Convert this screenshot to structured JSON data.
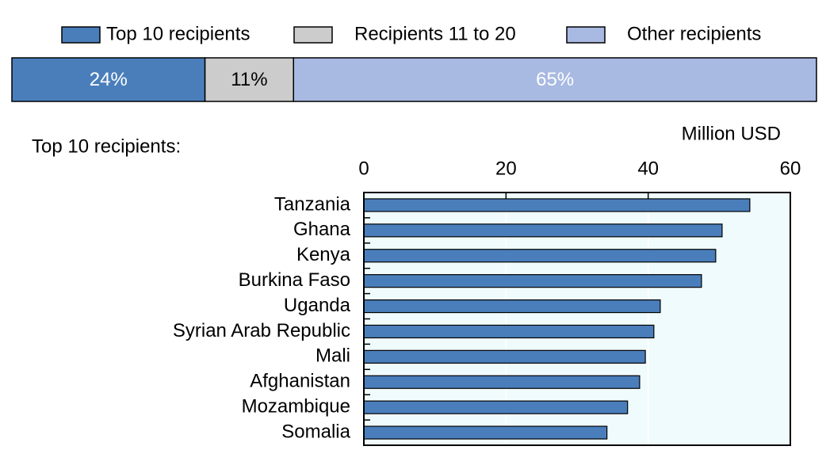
{
  "chart_data": [
    {
      "type": "stacked_share",
      "series": [
        {
          "name": "Top 10 recipients",
          "color": "#4a7ebb",
          "values": [
            24
          ],
          "value_labels": [
            "24%"
          ]
        },
        {
          "name": "Recipients 11 to 20",
          "color": "#cccccc",
          "values": [
            11
          ],
          "value_labels": [
            "11%"
          ]
        },
        {
          "name": "Other recipients",
          "color": "#a8b9e2",
          "values": [
            65
          ],
          "value_labels": [
            "65%"
          ]
        }
      ]
    },
    {
      "type": "barh",
      "title": "Top 10 recipients:",
      "x_label": "Million USD",
      "categories": [
        "Tanzania",
        "Ghana",
        "Kenya",
        "Burkina Faso",
        "Uganda",
        "Syrian Arab Republic",
        "Mali",
        "Afghanistan",
        "Mozambique",
        "Somalia"
      ],
      "values": [
        54.3,
        50.4,
        49.5,
        47.5,
        41.7,
        40.8,
        39.6,
        38.8,
        37.1,
        34.2
      ],
      "color": "#4a7ebb",
      "xlim": [
        0,
        60
      ],
      "xticks": [
        0,
        20,
        40,
        60
      ],
      "grid": true
    }
  ]
}
